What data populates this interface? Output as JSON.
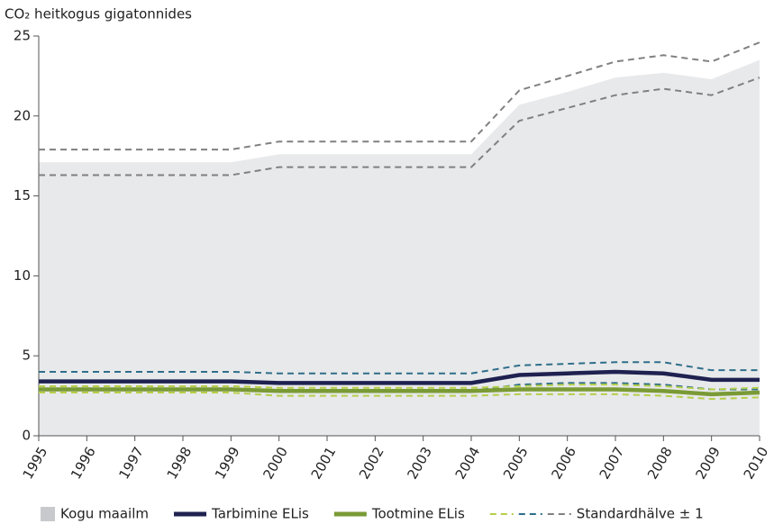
{
  "chart_data": {
    "type": "line",
    "y_label": "CO₂ heitkogus gigatonnides",
    "x": [
      1995,
      1996,
      1997,
      1998,
      1999,
      2000,
      2001,
      2002,
      2003,
      2004,
      2005,
      2006,
      2007,
      2008,
      2009,
      2010
    ],
    "xlim": [
      1995,
      2010
    ],
    "xticks": [
      1995,
      1996,
      1997,
      1998,
      1999,
      2000,
      2001,
      2002,
      2003,
      2004,
      2005,
      2006,
      2007,
      2008,
      2009,
      2010
    ],
    "ylim": [
      0,
      25
    ],
    "yticks": [
      0,
      5,
      10,
      15,
      20,
      25
    ],
    "band_label": "Standardhälve ± 1",
    "series": [
      {
        "name": "Kogu maailm",
        "style": "area",
        "color": "#e8e9eb",
        "values": [
          17.1,
          17.1,
          17.1,
          17.1,
          17.1,
          17.6,
          17.6,
          17.6,
          17.6,
          17.6,
          20.7,
          21.5,
          22.4,
          22.7,
          22.3,
          23.5
        ],
        "band": {
          "color": "#808080",
          "upper": [
            17.9,
            17.9,
            17.9,
            17.9,
            17.9,
            18.4,
            18.4,
            18.4,
            18.4,
            18.4,
            21.6,
            22.5,
            23.4,
            23.8,
            23.4,
            24.6
          ],
          "lower": [
            16.3,
            16.3,
            16.3,
            16.3,
            16.3,
            16.8,
            16.8,
            16.8,
            16.8,
            16.8,
            19.7,
            20.5,
            21.3,
            21.7,
            21.3,
            22.4
          ]
        }
      },
      {
        "name": "Tarbimine ELis",
        "style": "line",
        "color": "#1f2150",
        "values": [
          3.4,
          3.4,
          3.4,
          3.4,
          3.4,
          3.3,
          3.3,
          3.3,
          3.3,
          3.3,
          3.8,
          3.9,
          4.0,
          3.9,
          3.5,
          3.5
        ],
        "band": {
          "color": "#2e6e8a",
          "upper": [
            4.0,
            4.0,
            4.0,
            4.0,
            4.0,
            3.9,
            3.9,
            3.9,
            3.9,
            3.9,
            4.4,
            4.5,
            4.6,
            4.6,
            4.1,
            4.1
          ],
          "lower": [
            2.9,
            2.9,
            2.9,
            2.9,
            2.9,
            2.8,
            2.8,
            2.8,
            2.8,
            2.8,
            3.2,
            3.3,
            3.3,
            3.2,
            2.9,
            2.9
          ]
        }
      },
      {
        "name": "Tootmine ELis",
        "style": "line",
        "color": "#7a9a35",
        "values": [
          2.9,
          2.9,
          2.9,
          2.9,
          2.9,
          2.8,
          2.8,
          2.8,
          2.8,
          2.8,
          2.9,
          2.9,
          2.9,
          2.8,
          2.6,
          2.7
        ],
        "band": {
          "color": "#b5cf4a",
          "upper": [
            3.1,
            3.1,
            3.1,
            3.1,
            3.1,
            3.0,
            3.0,
            3.0,
            3.0,
            3.0,
            3.1,
            3.2,
            3.2,
            3.1,
            2.9,
            3.0
          ],
          "lower": [
            2.7,
            2.7,
            2.7,
            2.7,
            2.7,
            2.5,
            2.5,
            2.5,
            2.5,
            2.5,
            2.6,
            2.6,
            2.6,
            2.5,
            2.3,
            2.4
          ]
        }
      }
    ]
  }
}
